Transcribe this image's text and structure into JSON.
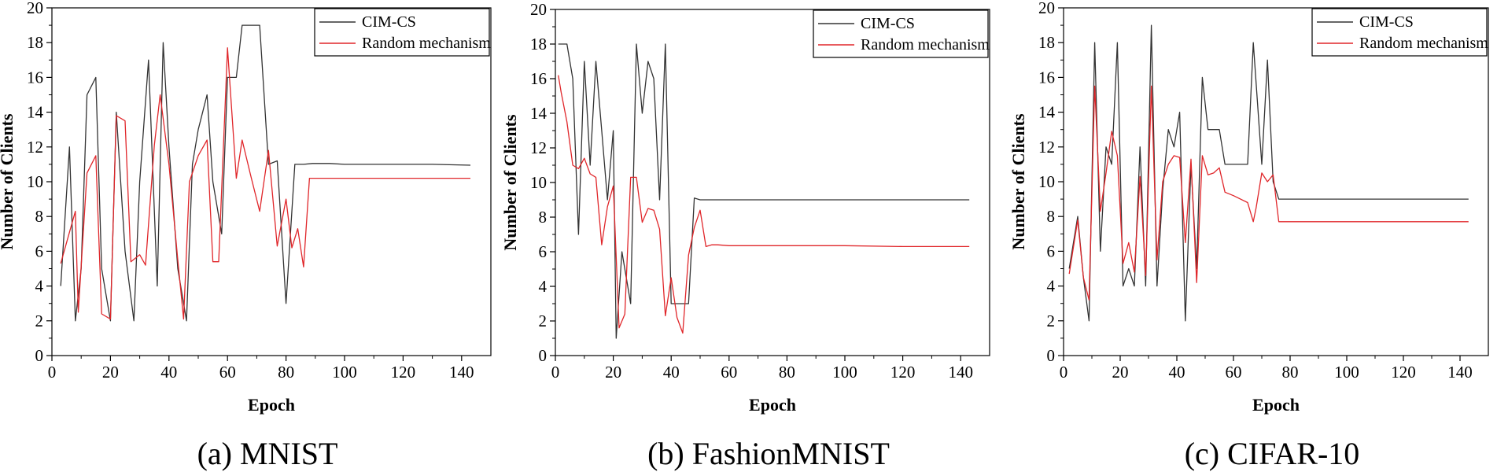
{
  "legend": {
    "series_a": "CIM-CS",
    "series_b": "Random mechanism"
  },
  "colors": {
    "cim": "#333333",
    "random": "#e0262a",
    "axis": "#000000"
  },
  "chart_data": [
    {
      "type": "line",
      "caption": "(a) MNIST",
      "xlabel": "Epoch",
      "ylabel": "Number of Clients",
      "xlim": [
        0,
        150
      ],
      "ylim": [
        0,
        20
      ],
      "xticks": [
        0,
        20,
        40,
        60,
        80,
        100,
        120,
        140
      ],
      "yticks": [
        0,
        2,
        4,
        6,
        8,
        10,
        12,
        14,
        16,
        18,
        20
      ],
      "series": [
        {
          "name": "CIM-CS",
          "color": "#333333",
          "x": [
            3,
            6,
            8,
            10,
            12,
            15,
            17,
            20,
            22,
            25,
            28,
            30,
            33,
            36,
            38,
            40,
            43,
            46,
            48,
            50,
            53,
            55,
            58,
            60,
            63,
            65,
            68,
            71,
            74,
            77,
            80,
            83,
            86,
            89,
            95,
            100,
            110,
            120,
            130,
            143
          ],
          "y": [
            4,
            12,
            2,
            5,
            15,
            16,
            5,
            2,
            14,
            6,
            2,
            10,
            17,
            4,
            18,
            12,
            5,
            2,
            11,
            13,
            15,
            10,
            7,
            16,
            16,
            19,
            19,
            19,
            11,
            11.2,
            3,
            11,
            11,
            11.05,
            11.05,
            11,
            11,
            11,
            11,
            10.95
          ]
        },
        {
          "name": "Random mechanism",
          "color": "#e0262a",
          "x": [
            3,
            5,
            8,
            9,
            12,
            15,
            17,
            20,
            22,
            25,
            27,
            30,
            32,
            35,
            37,
            40,
            43,
            45,
            47,
            50,
            53,
            55,
            57,
            60,
            63,
            65,
            68,
            71,
            74,
            77,
            80,
            82,
            84,
            86,
            88,
            95,
            100,
            120,
            143
          ],
          "y": [
            5.3,
            6.5,
            8.3,
            2.5,
            10.5,
            11.5,
            2.4,
            2.1,
            13.8,
            13.5,
            5.4,
            5.8,
            5.2,
            12.1,
            15,
            11,
            5.5,
            2.1,
            10,
            11.5,
            12.4,
            5.4,
            5.4,
            17.7,
            10.2,
            12.4,
            10.3,
            8.3,
            11.8,
            6.3,
            9,
            6.2,
            7.3,
            5.1,
            10.2,
            10.2,
            10.2,
            10.2,
            10.2
          ]
        }
      ]
    },
    {
      "type": "line",
      "caption": "(b) FashionMNIST",
      "xlabel": "Epoch",
      "ylabel": "Number of Clients",
      "xlim": [
        0,
        150
      ],
      "ylim": [
        0,
        20
      ],
      "xticks": [
        0,
        20,
        40,
        60,
        80,
        100,
        120,
        140
      ],
      "yticks": [
        0,
        2,
        4,
        6,
        8,
        10,
        12,
        14,
        16,
        18,
        20
      ],
      "series": [
        {
          "name": "CIM-CS",
          "color": "#333333",
          "x": [
            1,
            4,
            6,
            8,
            10,
            12,
            14,
            16,
            18,
            20,
            21,
            23,
            26,
            28,
            30,
            32,
            34,
            36,
            38,
            40,
            42,
            44,
            46,
            48,
            50,
            55,
            60,
            80,
            100,
            120,
            143
          ],
          "y": [
            18,
            18,
            16,
            7,
            17,
            11,
            17,
            13,
            9,
            13,
            1,
            6,
            3,
            18,
            14,
            17,
            16,
            9,
            18,
            3,
            3,
            3,
            3,
            9.1,
            9,
            9,
            9,
            9,
            9,
            9,
            9
          ]
        },
        {
          "name": "Random mechanism",
          "color": "#e0262a",
          "x": [
            1,
            2,
            4,
            6,
            8,
            10,
            12,
            14,
            16,
            18,
            20,
            22,
            24,
            26,
            28,
            30,
            32,
            34,
            36,
            38,
            40,
            42,
            44,
            46,
            48,
            50,
            52,
            54,
            56,
            60,
            80,
            100,
            120,
            143
          ],
          "y": [
            16.2,
            15.2,
            13.5,
            11,
            10.8,
            11.4,
            10.5,
            10.3,
            6.4,
            8.6,
            9.8,
            1.6,
            2.4,
            10.3,
            10.3,
            7.7,
            8.5,
            8.4,
            7.3,
            2.3,
            4.5,
            2.2,
            1.3,
            5.8,
            7.4,
            8.4,
            6.3,
            6.4,
            6.4,
            6.35,
            6.35,
            6.35,
            6.3,
            6.3
          ]
        }
      ]
    },
    {
      "type": "line",
      "caption": "(c) CIFAR-10",
      "xlabel": "Epoch",
      "ylabel": "Number of Clients",
      "xlim": [
        0,
        150
      ],
      "ylim": [
        0,
        20
      ],
      "xticks": [
        0,
        20,
        40,
        60,
        80,
        100,
        120,
        140
      ],
      "yticks": [
        0,
        2,
        4,
        6,
        8,
        10,
        12,
        14,
        16,
        18,
        20
      ],
      "series": [
        {
          "name": "CIM-CS",
          "color": "#333333",
          "x": [
            2,
            5,
            7,
            9,
            11,
            13,
            15,
            17,
            19,
            21,
            23,
            25,
            27,
            29,
            31,
            33,
            35,
            37,
            39,
            41,
            43,
            45,
            47,
            49,
            51,
            53,
            55,
            57,
            60,
            65,
            67,
            70,
            72,
            74,
            76,
            80,
            100,
            120,
            143
          ],
          "y": [
            5,
            8,
            4.5,
            2,
            18,
            6,
            12,
            11,
            18,
            4,
            5,
            4,
            12,
            4,
            19,
            4,
            9.5,
            13,
            12,
            14,
            2,
            11,
            5,
            16,
            13,
            13,
            13,
            11,
            11,
            11,
            18,
            11,
            17,
            10,
            9,
            9,
            9,
            9,
            9
          ]
        },
        {
          "name": "Random mechanism",
          "color": "#e0262a",
          "x": [
            2,
            5,
            7,
            9,
            11,
            13,
            15,
            17,
            19,
            21,
            23,
            25,
            27,
            29,
            31,
            33,
            35,
            37,
            39,
            41,
            43,
            45,
            47,
            49,
            51,
            53,
            55,
            57,
            60,
            65,
            67,
            68,
            70,
            72,
            74,
            76,
            80,
            100,
            120,
            143
          ],
          "y": [
            4.7,
            7.8,
            4.5,
            3.2,
            15.5,
            8.3,
            10.5,
            12.9,
            11.5,
            5.3,
            6.5,
            4.8,
            10.3,
            4.6,
            15.5,
            5.5,
            10,
            11,
            11.5,
            11.4,
            6.5,
            11.3,
            4.2,
            11.5,
            10.4,
            10.5,
            10.8,
            9.4,
            9.2,
            8.8,
            7.7,
            8.5,
            10.5,
            10,
            10.4,
            7.7,
            7.7,
            7.7,
            7.7,
            7.7
          ]
        }
      ]
    }
  ]
}
